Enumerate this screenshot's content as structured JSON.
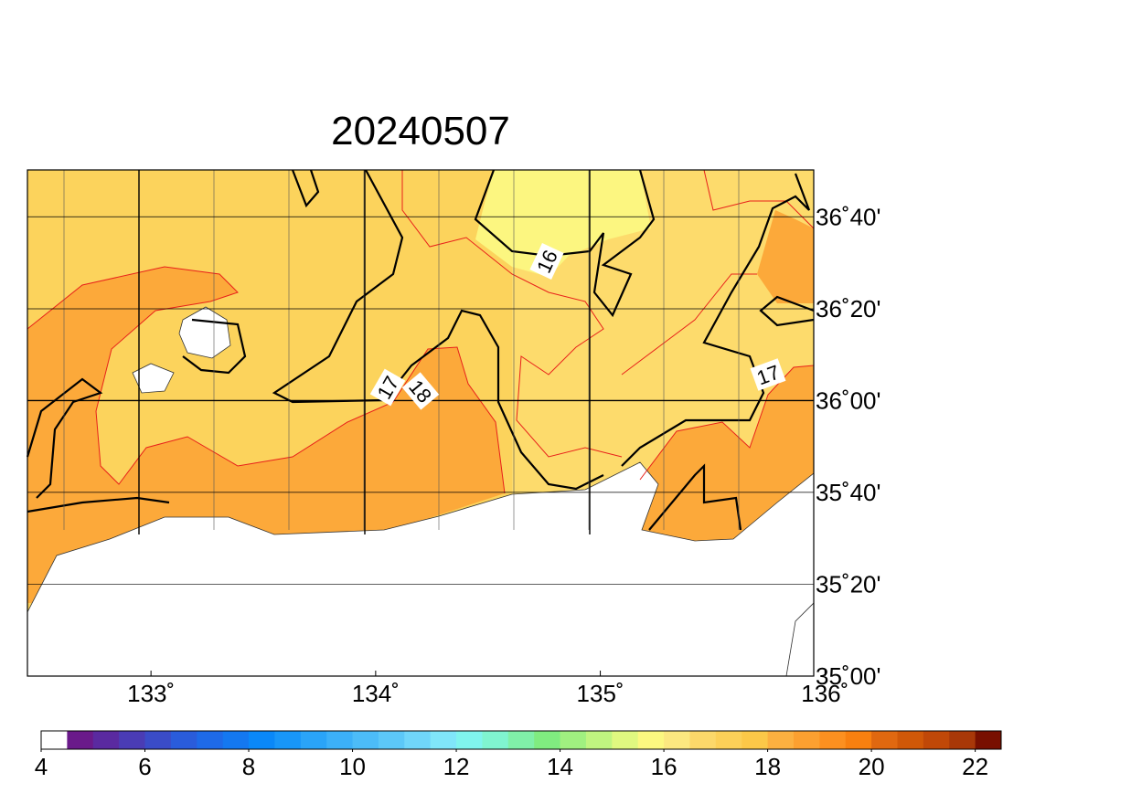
{
  "map": {
    "title": "20240507",
    "xlim": [
      132.45,
      135.95
    ],
    "ylim": [
      35,
      36.837
    ],
    "lon_ticks": [
      {
        "value": 133,
        "label": "133˚"
      },
      {
        "value": 134,
        "label": "134˚"
      },
      {
        "value": 135,
        "label": "135˚"
      },
      {
        "value": 136,
        "label": "136˚"
      }
    ],
    "lat_ticks": [
      {
        "value": 35,
        "label": "35˚00'"
      },
      {
        "value": 35.333,
        "label": "35˚20'"
      },
      {
        "value": 35.667,
        "label": "35˚40'"
      },
      {
        "value": 36,
        "label": "36˚00'"
      },
      {
        "value": 36.333,
        "label": "36˚20'"
      },
      {
        "value": 36.667,
        "label": "36˚40'"
      }
    ],
    "contour_labels": [
      "16",
      "17",
      "18",
      "17"
    ],
    "colorbar": {
      "range": [
        4,
        22.5
      ],
      "ticks": [
        4,
        6,
        8,
        10,
        12,
        14,
        16,
        18,
        20,
        22
      ],
      "colors": [
        "#ffffff",
        "#6a1a8a",
        "#5a2aa0",
        "#4a3cb5",
        "#3a4cc8",
        "#2a5cdb",
        "#1e6ae8",
        "#1478f0",
        "#0a88f8",
        "#1896f8",
        "#2aa4f8",
        "#3cb0f8",
        "#4cbcf8",
        "#5cc8f8",
        "#70d6fa",
        "#80e6fa",
        "#80f4ee",
        "#80f4d0",
        "#80f0a8",
        "#80ec80",
        "#a0f080",
        "#c0f480",
        "#e0f880",
        "#fcf880",
        "#fce880",
        "#fcd86a",
        "#fcd058",
        "#fcc848",
        "#fcb040",
        "#fca030",
        "#fc9020",
        "#f88010",
        "#e06810",
        "#d05808",
        "#c04808",
        "#a83808",
        "#781000"
      ]
    }
  }
}
